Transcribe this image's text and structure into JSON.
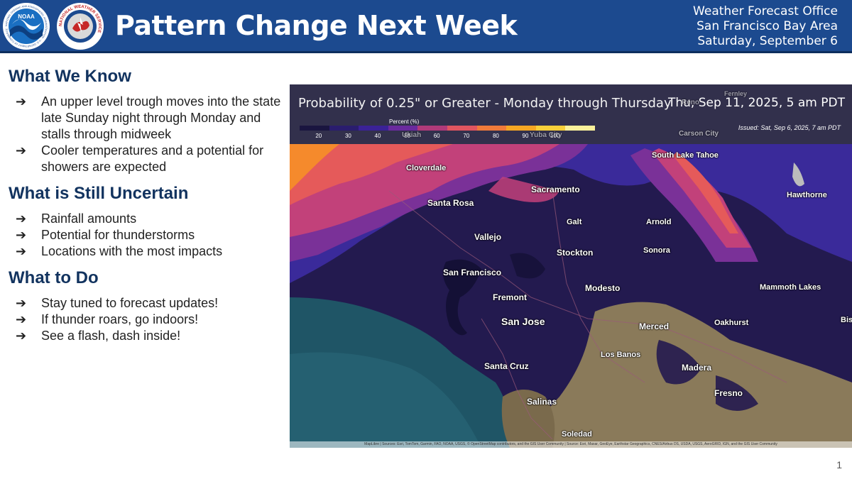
{
  "header": {
    "title": "Pattern Change Next Week",
    "office_line1": "Weather Forecast Office",
    "office_line2": "San Francisco Bay Area",
    "office_line3": "Saturday, September 6",
    "noaa_logo_text": "NOAA",
    "noaa_seal_text": "NATIONAL OCEANIC AND ATMOSPHERIC ADMINISTRATION · U.S. DEPARTMENT OF COMMERCE",
    "nws_seal_text": "NATIONAL WEATHER SERVICE"
  },
  "sections": [
    {
      "title": "What We Know",
      "bullets": [
        "An upper level trough moves into the state late Sunday night through Monday and stalls through midweek",
        "Cooler temperatures and a potential for showers are expected"
      ]
    },
    {
      "title": "What is Still Uncertain",
      "bullets": [
        "Rainfall amounts",
        "Potential for thunderstorms",
        "Locations with the most impacts"
      ]
    },
    {
      "title": "What to Do",
      "bullets": [
        "Stay tuned to forecast updates!",
        "If thunder roars, go indoors!",
        "See a flash, dash inside!"
      ]
    }
  ],
  "bullet_arrow": "➔",
  "map": {
    "title": "Probability of 0.25\" or Greater - Monday through Thursday",
    "valid_time": "Thu, Sep 11, 2025, 5 am PDT",
    "issued": "Issued: Sat, Sep 6, 2025, 7 am PDT",
    "legend_label": "Percent (%)",
    "legend_ticks": [
      "20",
      "30",
      "40",
      "50",
      "60",
      "70",
      "80",
      "90",
      "100"
    ],
    "legend_colors": [
      "#1a1540",
      "#2a1d6e",
      "#3b2296",
      "#6a2a9e",
      "#b03a7a",
      "#e05560",
      "#f07a3a",
      "#f5a623",
      "#f8cf3a",
      "#fbf09a"
    ],
    "colors": {
      "ocean": "#1f5566",
      "land_low": "#231a4f",
      "prob_30": "#3a2a9a",
      "prob_40": "#7a3198",
      "prob_50": "#c2417a",
      "prob_60": "#e55a5a",
      "prob_70": "#f58a2c",
      "terrain": "#8a7a5a"
    },
    "cities": {
      "cloverdale": "Cloverdale",
      "santa_rosa": "Santa Rosa",
      "sacramento": "Sacramento",
      "south_lake_tahoe": "South Lake Tahoe",
      "hawthorne": "Hawthorne",
      "vallejo": "Vallejo",
      "galt": "Galt",
      "arnold": "Arnold",
      "sonora": "Sonora",
      "stockton": "Stockton",
      "san_francisco": "San Francisco",
      "fremont": "Fremont",
      "modesto": "Modesto",
      "mammoth_lakes": "Mammoth Lakes",
      "san_jose": "San Jose",
      "merced": "Merced",
      "oakhurst": "Oakhurst",
      "bishop": "Bish",
      "los_banos": "Los Banos",
      "madera": "Madera",
      "santa_cruz": "Santa Cruz",
      "fresno": "Fresno",
      "salinas": "Salinas",
      "soledad": "Soledad",
      "ukiah": "Ukiah",
      "yuba_city": "Yuba City",
      "carson_city": "Carson City",
      "fernley": "Fernley",
      "reno": "Reno"
    },
    "attribution": "MapLibre | Sources: Esri, TomTom, Garmin, FAO, NOAA, USGS, © OpenStreetMap contributors, and the GIS User Community | Source: Esri, Maxar, GeoEye, Earthstar Geographics, CNES/Airbus DS, USDA, USGS, AeroGRID, IGN, and the GIS User Community"
  },
  "slide_number": "1"
}
